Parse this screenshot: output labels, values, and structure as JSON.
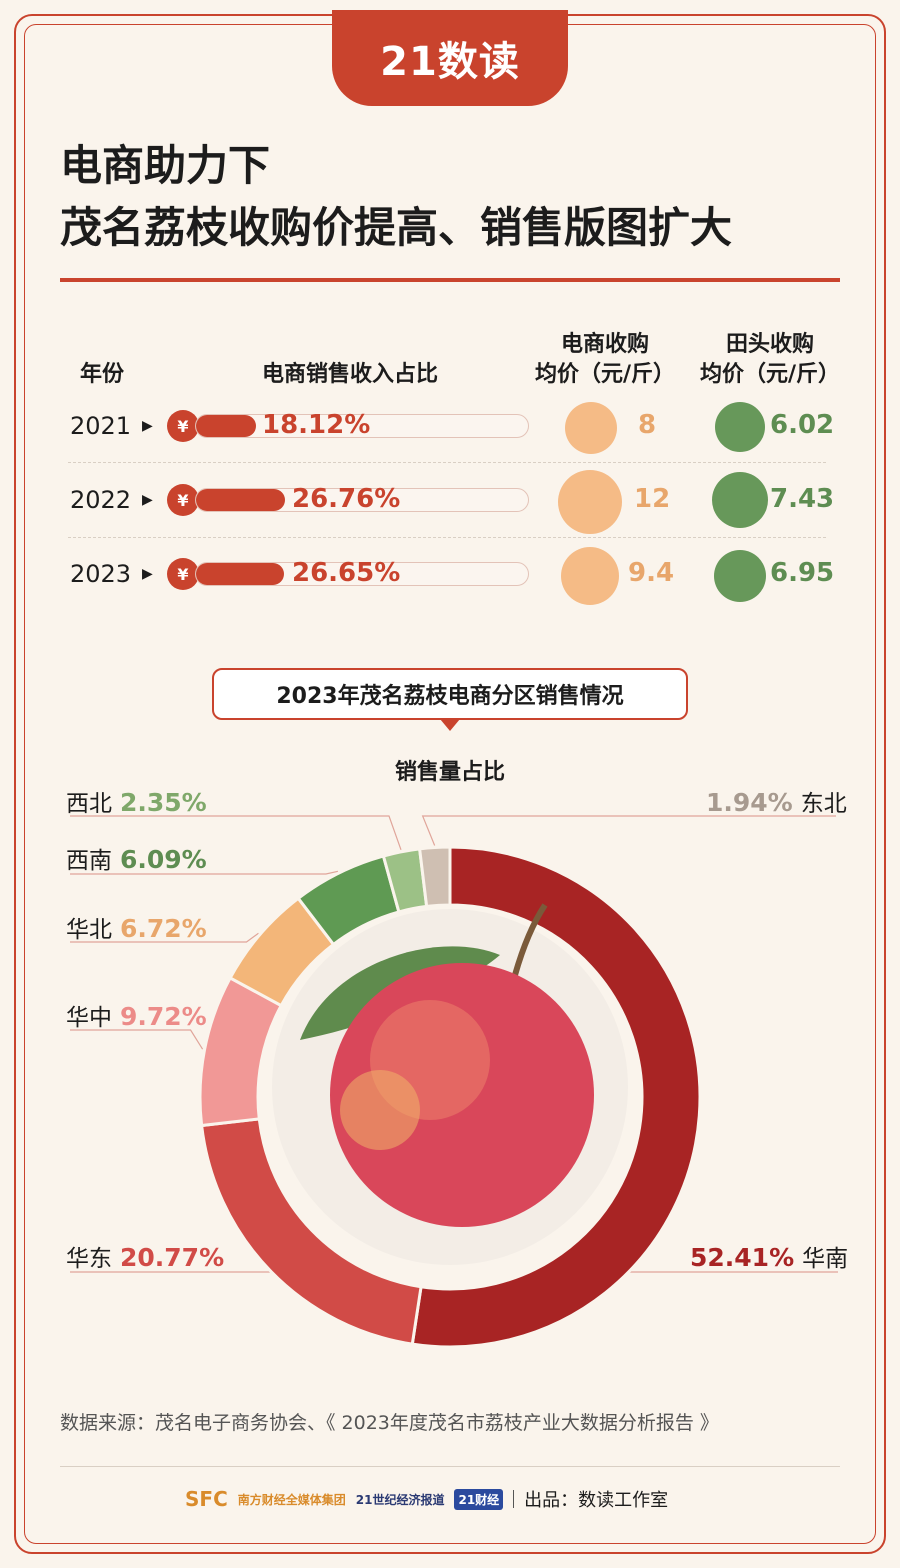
{
  "brand": "21数读",
  "title_line1": "电商助力下",
  "title_line2": "茂名荔枝收购价提高、销售版图扩大",
  "table": {
    "header_year": "年份",
    "header_share": "电商销售收入占比",
    "header_ecom": "电商收购\n均价（元/斤）",
    "header_field": "田头收购\n均价（元/斤）",
    "currency_symbol": "¥",
    "rows": [
      {
        "year": "2021",
        "share": 18.12,
        "share_label": "18.12%",
        "ecom_price": "8",
        "field_price": "6.02"
      },
      {
        "year": "2022",
        "share": 26.76,
        "share_label": "26.76%",
        "ecom_price": "12",
        "field_price": "7.43"
      },
      {
        "year": "2023",
        "share": 26.65,
        "share_label": "26.65%",
        "ecom_price": "9.4",
        "field_price": "6.95"
      }
    ]
  },
  "colors": {
    "accent": "#c9432d",
    "orange": "#f5bb86",
    "green": "#67985a"
  },
  "chart_data": {
    "type": "pie",
    "title": "2023年茂名荔枝电商分区销售情况",
    "subtitle": "销售量占比",
    "series": [
      {
        "name": "华南",
        "value": 52.41,
        "label": "52.41%",
        "color": "#a82424"
      },
      {
        "name": "华东",
        "value": 20.77,
        "label": "20.77%",
        "color": "#d14b47"
      },
      {
        "name": "华中",
        "value": 9.72,
        "label": "9.72%",
        "color": "#f19896"
      },
      {
        "name": "华北",
        "value": 6.72,
        "label": "6.72%",
        "color": "#f3b679"
      },
      {
        "name": "西南",
        "value": 6.09,
        "label": "6.09%",
        "color": "#5f9a53"
      },
      {
        "name": "西北",
        "value": 2.35,
        "label": "2.35%",
        "color": "#9cc186"
      },
      {
        "name": "东北",
        "value": 1.94,
        "label": "1.94%",
        "color": "#cfbfb2"
      }
    ]
  },
  "footer": {
    "source": "数据来源：茂名电子商务协会、《 2023年度茂名市荔枝产业大数据分析报告 》",
    "logo1": "SFC",
    "logo1_text": "南方财经全媒体集团",
    "logo2": "21世纪经济报道",
    "logo3": "21财经",
    "credit": "出品：数读工作室"
  }
}
